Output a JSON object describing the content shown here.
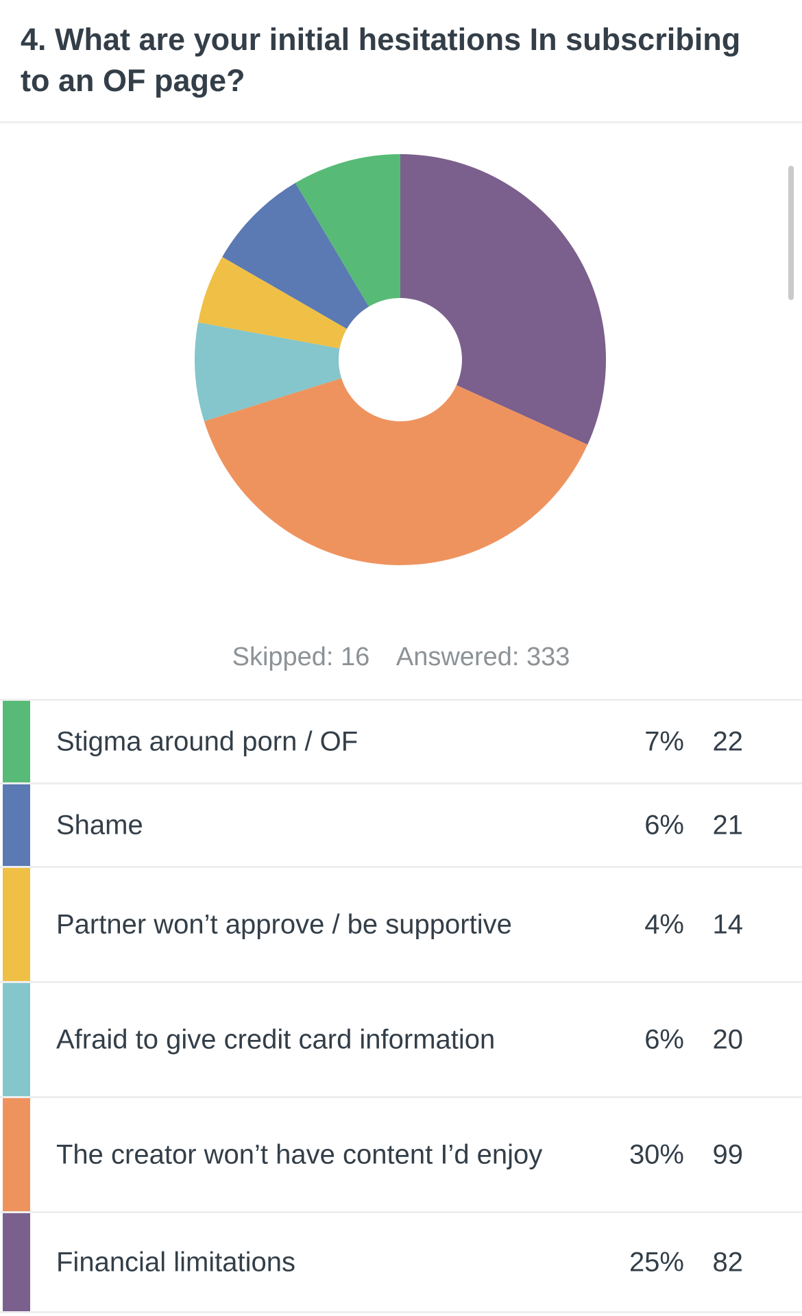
{
  "question": {
    "title": "4. What are your initial hesitations In subscribing to an OF page?"
  },
  "summary": {
    "skipped": "Skipped: 16",
    "answered": "Answered: 333"
  },
  "chart_data": {
    "type": "pie",
    "title": "4. What are your initial hesitations In subscribing to an OF page?",
    "style": "donut",
    "series": [
      {
        "name": "Stigma around porn / OF",
        "percent": "7%",
        "count": 22,
        "color": "#57bb77"
      },
      {
        "name": "Shame",
        "percent": "6%",
        "count": 21,
        "color": "#5b79b3"
      },
      {
        "name": "Partner won’t approve / be supportive",
        "percent": "4%",
        "count": 14,
        "color": "#efc045"
      },
      {
        "name": "Afraid to give credit card information",
        "percent": "6%",
        "count": 20,
        "color": "#84c6cb"
      },
      {
        "name": "The creator won’t have content I’d enjoy",
        "percent": "30%",
        "count": 99,
        "color": "#ef935e"
      },
      {
        "name": "Financial limitations",
        "percent": "25%",
        "count": 82,
        "color": "#7b5f8c"
      }
    ],
    "legend_position": "bottom"
  }
}
